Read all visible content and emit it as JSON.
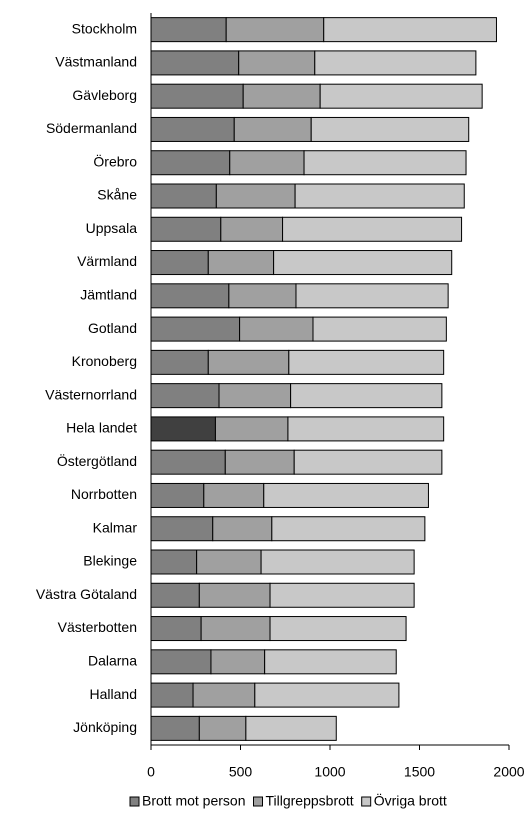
{
  "chart_data": {
    "type": "stacked-barh",
    "categories": [
      "Stockholm",
      "Västmanland",
      "Gävleborg",
      "Södermanland",
      "Örebro",
      "Skåne",
      "Uppsala",
      "Värmland",
      "Jämtland",
      "Gotland",
      "Kronoberg",
      "Västernorrland",
      "Hela landet",
      "Östergötland",
      "Norrbotten",
      "Kalmar",
      "Blekinge",
      "Västra Götaland",
      "Västerbotten",
      "Dalarna",
      "Halland",
      "Jönköping"
    ],
    "series": [
      {
        "name": "Brott mot person",
        "color": "#808080",
        "colors": [
          "#808080",
          "#808080",
          "#808080",
          "#808080",
          "#808080",
          "#808080",
          "#808080",
          "#808080",
          "#808080",
          "#808080",
          "#808080",
          "#808080",
          "#404040",
          "#808080",
          "#808080",
          "#808080",
          "#808080",
          "#808080",
          "#808080",
          "#808080",
          "#808080",
          "#808080"
        ],
        "values": [
          420,
          490,
          515,
          465,
          440,
          365,
          390,
          320,
          435,
          495,
          320,
          380,
          360,
          415,
          295,
          345,
          255,
          270,
          280,
          335,
          235,
          270
        ]
      },
      {
        "name": "Tillgreppsbrott",
        "color": "#a0a0a0",
        "values": [
          545,
          425,
          430,
          430,
          415,
          440,
          345,
          365,
          375,
          410,
          450,
          400,
          405,
          385,
          335,
          330,
          360,
          395,
          385,
          300,
          345,
          260
        ]
      },
      {
        "name": "Övriga brott",
        "color": "#c8c8c8",
        "values": [
          965,
          900,
          905,
          880,
          905,
          945,
          1000,
          995,
          850,
          745,
          865,
          845,
          870,
          825,
          920,
          855,
          855,
          805,
          760,
          735,
          805,
          505
        ]
      }
    ],
    "xlim": [
      0,
      2000
    ],
    "xticks": [
      0,
      500,
      1000,
      1500,
      2000
    ],
    "legend": "bottom"
  }
}
